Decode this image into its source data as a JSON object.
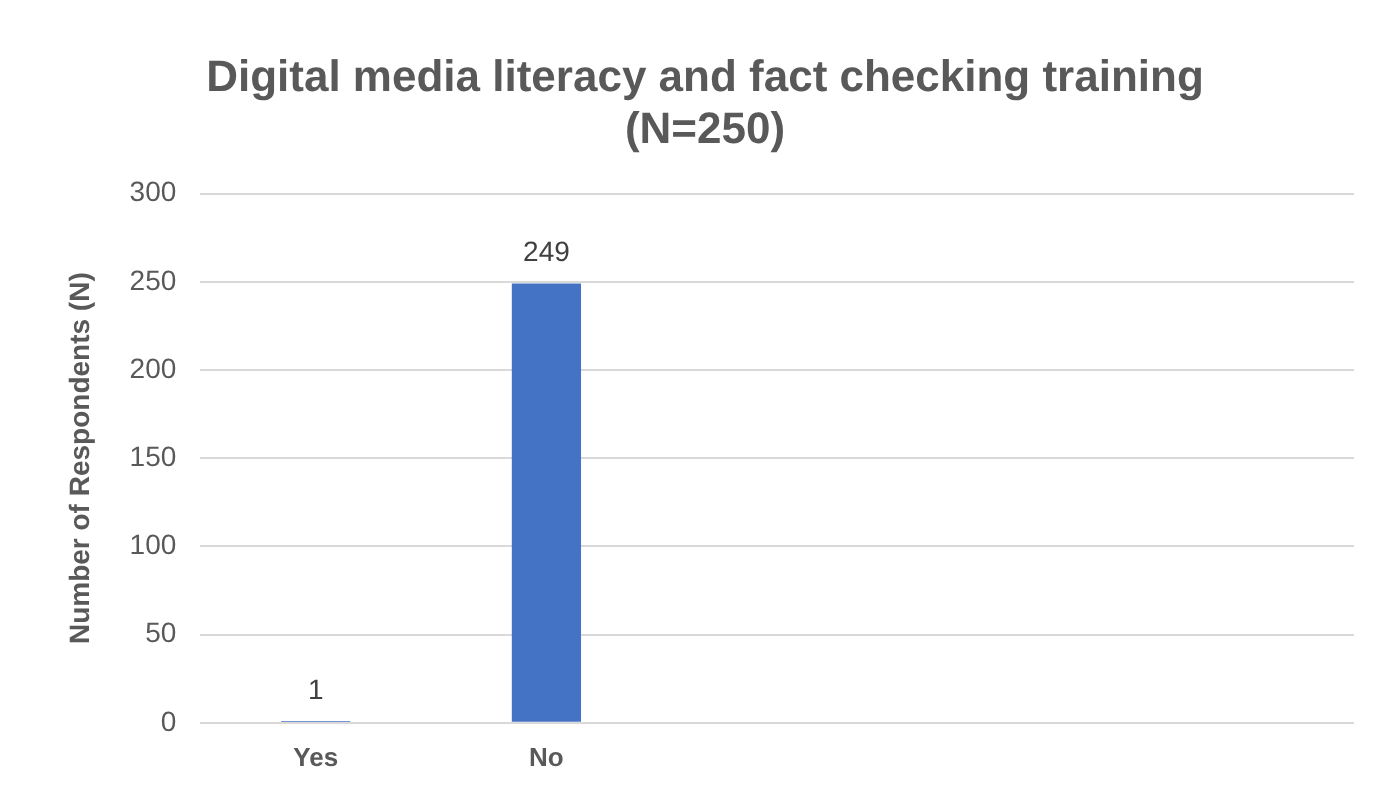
{
  "chart_data": {
    "type": "bar",
    "title": "Digital media literacy and fact checking training\n(N=250)",
    "ylabel": "Number of Respondents (N)",
    "categories": [
      "Yes",
      "No",
      null,
      null,
      null
    ],
    "values": [
      1,
      249,
      null,
      null,
      null
    ],
    "color": "#4472c4",
    "ylim": [
      0,
      300
    ],
    "yticks": [
      0,
      50,
      100,
      150,
      200,
      250,
      300
    ],
    "grid": "y",
    "data_labels": true,
    "legend": false
  }
}
